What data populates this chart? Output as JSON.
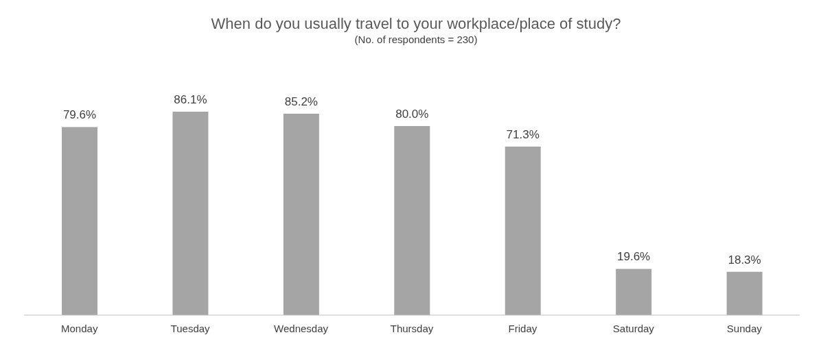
{
  "chart_data": {
    "type": "bar",
    "title": "When do you usually travel to your workplace/place of study?",
    "subtitle": "(No. of respondents = 230)",
    "categories": [
      "Monday",
      "Tuesday",
      "Wednesday",
      "Thursday",
      "Friday",
      "Saturday",
      "Sunday"
    ],
    "values": [
      79.6,
      86.1,
      85.2,
      80.0,
      71.3,
      19.6,
      18.3
    ],
    "value_labels": [
      "79.6%",
      "86.1%",
      "85.2%",
      "80.0%",
      "71.3%",
      "19.6%",
      "18.3%"
    ],
    "color": "#a5a5a5"
  }
}
